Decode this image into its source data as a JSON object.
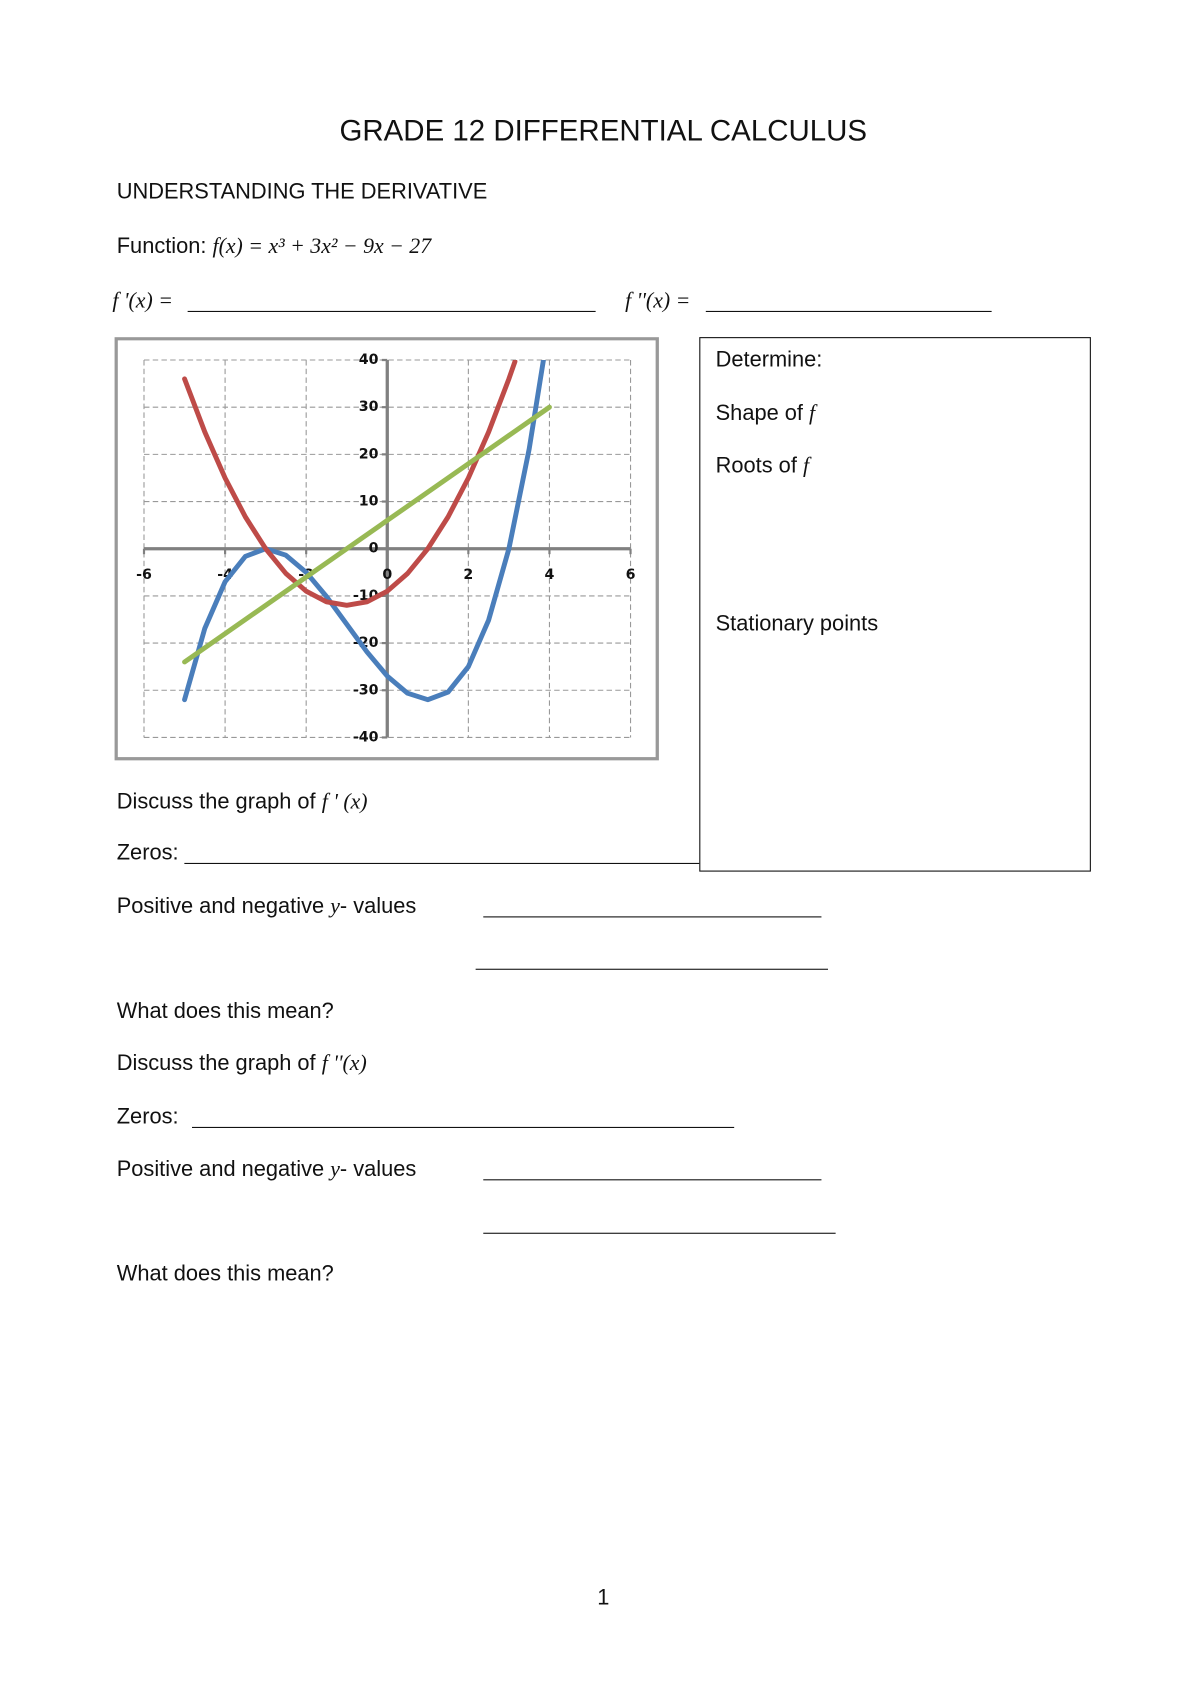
{
  "header": {
    "title": "GRADE 12 DIFFERENTIAL CALCULUS",
    "subtitle": "UNDERSTANDING THE DERIVATIVE"
  },
  "function": {
    "label": "Function:",
    "expression": "f(x) = x³ + 3x² − 9x − 27"
  },
  "derivatives": {
    "first": "f '(x) =",
    "second": "f ''(x) ="
  },
  "determine_box": {
    "heading": "Determine:",
    "items": [
      {
        "text": "Shape of",
        "symbol": "f"
      },
      {
        "text": "Roots of",
        "symbol": "f"
      },
      {
        "text": "Stationary points"
      }
    ]
  },
  "questions": [
    {
      "text": "Discuss the graph of",
      "symbol": "f ' (x)"
    },
    {
      "text": "Zeros:"
    },
    {
      "text": "Positive and negative",
      "symbol": "y",
      "suffix": "- values"
    },
    {
      "text": "What does this mean?"
    },
    {
      "text": "Discuss the graph of",
      "symbol": "f ''(x)"
    },
    {
      "text": "Zeros:"
    },
    {
      "text": "Positive and negative",
      "symbol": "y",
      "suffix": "- values"
    },
    {
      "text": "What does this mean?"
    }
  ],
  "chart_data": {
    "type": "line",
    "xlim": [
      -6,
      6
    ],
    "xticks": [
      -6,
      -4,
      -2,
      0,
      2,
      4,
      6
    ],
    "ylim": [
      -40,
      40
    ],
    "yticks": [
      -40,
      -30,
      -20,
      -10,
      0,
      10,
      20,
      30,
      40
    ],
    "grid": true,
    "series": [
      {
        "color": "#4a7ebb",
        "x": [
          -5,
          -4.5,
          -4,
          -3.5,
          -3,
          -2.5,
          -2,
          -1.5,
          -1,
          -0.5,
          0,
          0.5,
          1,
          1.5,
          2,
          2.5,
          3,
          3.5,
          3.85
        ],
        "values": [
          -32,
          -16.875,
          -7,
          -1.625,
          0,
          -1.375,
          -5,
          -10.125,
          -16,
          -21.875,
          -27,
          -30.625,
          -32,
          -30.375,
          -25,
          -15.125,
          0,
          21.125,
          39.9
        ]
      },
      {
        "color": "#be4b48",
        "x": [
          -5,
          -4.5,
          -4,
          -3.5,
          -3,
          -2.5,
          -2,
          -1.5,
          -1,
          -0.5,
          0,
          0.5,
          1,
          1.5,
          2,
          2.5,
          3,
          3.15
        ],
        "values": [
          36,
          24.75,
          15,
          6.75,
          0,
          -5.25,
          -9,
          -11.25,
          -12,
          -11.25,
          -9,
          -5.25,
          0,
          6.75,
          15,
          24.75,
          36,
          39.7
        ]
      },
      {
        "color": "#98b954",
        "x": [
          -5,
          4
        ],
        "values": [
          -24,
          30
        ]
      }
    ]
  },
  "page_number": "1"
}
